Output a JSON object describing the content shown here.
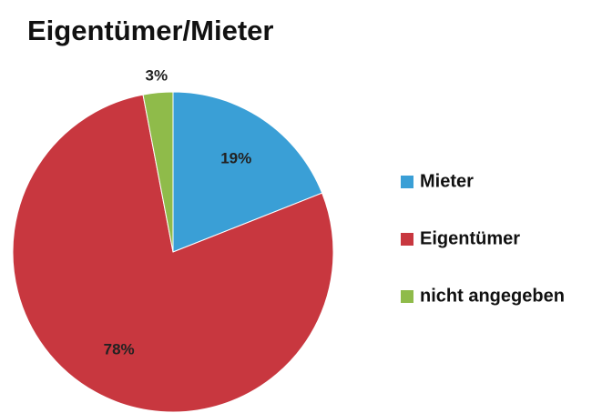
{
  "chart_data": {
    "type": "pie",
    "title": "Eigentümer/Mieter",
    "categories": [
      "Mieter",
      "Eigentümer",
      "nicht angegeben"
    ],
    "values": [
      19,
      78,
      3
    ],
    "value_labels": [
      "19%",
      "78%",
      "3%"
    ],
    "colors": [
      "#3a9fd6",
      "#c8373f",
      "#8fbb4a"
    ],
    "legend": "right"
  }
}
